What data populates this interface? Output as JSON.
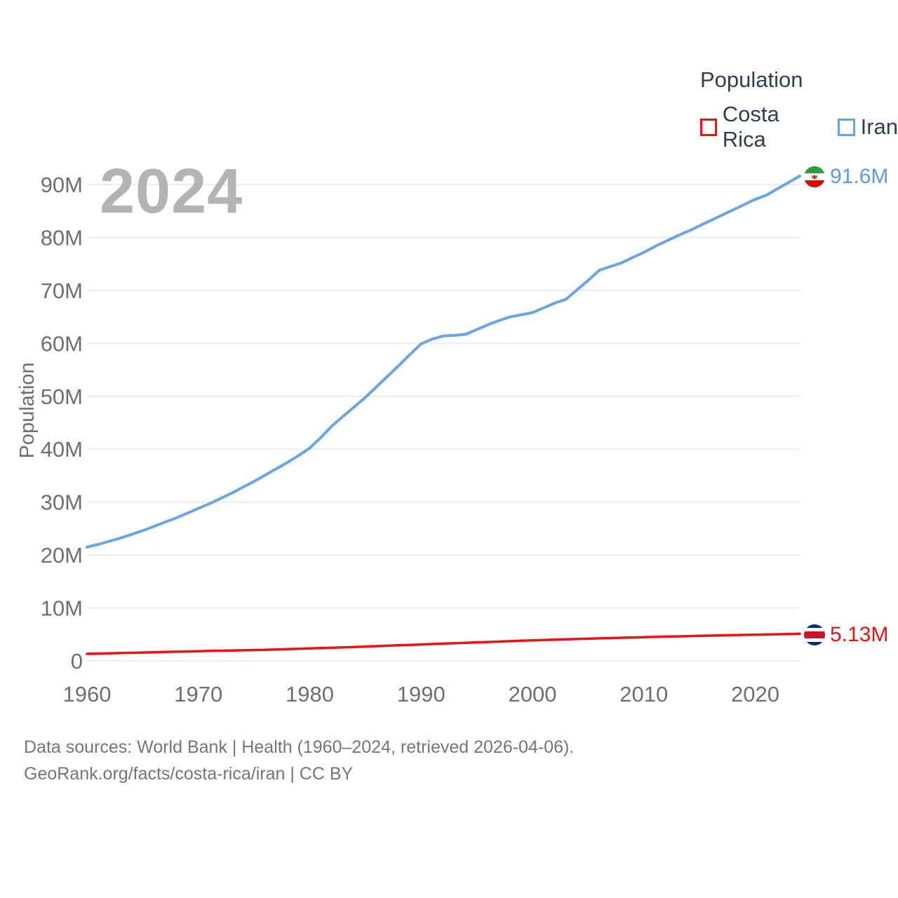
{
  "watermark": "2024",
  "legend": {
    "title": "Population",
    "items": [
      {
        "label": "Costa Rica",
        "color": "#ee1111"
      },
      {
        "label": "Iran",
        "color": "#6aa5e3"
      }
    ]
  },
  "footer": {
    "line1": "Data sources: World Bank | Health (1960–2024, retrieved 2026-04-06).",
    "line2": "GeoRank.org/facts/costa-rica/iran | CC BY"
  },
  "colors": {
    "costa_rica": "#ee1111",
    "iran": "#6aa5e3",
    "grid": "#ececec",
    "tick_text": "#6e6e6e",
    "legend_text": "#2e4050",
    "watermark": "#b3b3b3",
    "footer_text": "#757575"
  },
  "chart_data": {
    "type": "line",
    "title": "Population",
    "xlabel": "",
    "ylabel": "Population",
    "xlim": [
      1960,
      2024
    ],
    "ylim": [
      0,
      96
    ],
    "grid": true,
    "legend_position": "top-right",
    "x_start_year": 1960,
    "x_ticks": [
      1960,
      1970,
      1980,
      1990,
      2000,
      2010,
      2020
    ],
    "y_ticks": [
      {
        "value": 0,
        "label": "0"
      },
      {
        "value": 10,
        "label": "10M"
      },
      {
        "value": 20,
        "label": "20M"
      },
      {
        "value": 30,
        "label": "30M"
      },
      {
        "value": 40,
        "label": "40M"
      },
      {
        "value": 50,
        "label": "50M"
      },
      {
        "value": 60,
        "label": "60M"
      },
      {
        "value": 70,
        "label": "70M"
      },
      {
        "value": 80,
        "label": "80M"
      },
      {
        "value": 90,
        "label": "90M"
      }
    ],
    "series": [
      {
        "name": "Costa Rica",
        "color": "#ee1111",
        "end_label": "5.13M",
        "unit": "millions",
        "values": [
          1.33,
          1.38,
          1.43,
          1.48,
          1.53,
          1.58,
          1.63,
          1.68,
          1.73,
          1.78,
          1.83,
          1.88,
          1.92,
          1.96,
          2.0,
          2.05,
          2.1,
          2.16,
          2.22,
          2.28,
          2.35,
          2.42,
          2.49,
          2.56,
          2.63,
          2.7,
          2.78,
          2.86,
          2.94,
          3.02,
          3.1,
          3.18,
          3.26,
          3.34,
          3.42,
          3.5,
          3.57,
          3.65,
          3.72,
          3.8,
          3.87,
          3.94,
          4.0,
          4.07,
          4.13,
          4.19,
          4.25,
          4.31,
          4.37,
          4.43,
          4.48,
          4.53,
          4.58,
          4.63,
          4.68,
          4.73,
          4.77,
          4.82,
          4.86,
          4.9,
          4.94,
          4.99,
          5.03,
          5.08,
          5.13
        ]
      },
      {
        "name": "Iran",
        "color": "#6aa5e3",
        "end_label": "91.6M",
        "unit": "millions",
        "values": [
          21.5,
          22.0,
          22.6,
          23.2,
          23.9,
          24.6,
          25.4,
          26.2,
          27.0,
          27.9,
          28.8,
          29.7,
          30.7,
          31.7,
          32.8,
          33.9,
          35.1,
          36.3,
          37.5,
          38.8,
          40.2,
          42.2,
          44.4,
          46.2,
          48.0,
          49.8,
          51.8,
          53.8,
          55.8,
          57.9,
          59.9,
          60.8,
          61.4,
          61.5,
          61.7,
          62.6,
          63.5,
          64.3,
          65.0,
          65.4,
          65.8,
          66.7,
          67.6,
          68.3,
          70.1,
          71.9,
          73.8,
          74.5,
          75.2,
          76.2,
          77.2,
          78.3,
          79.3,
          80.3,
          81.2,
          82.2,
          83.2,
          84.2,
          85.2,
          86.2,
          87.2,
          88.0,
          89.2,
          90.4,
          91.6
        ]
      }
    ]
  }
}
